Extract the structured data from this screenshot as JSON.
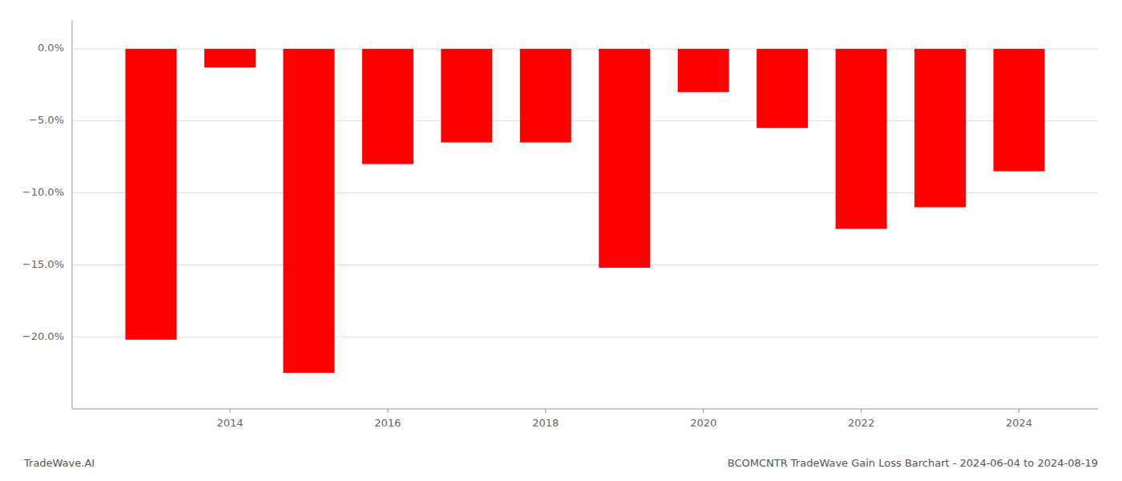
{
  "chart_data": {
    "type": "bar",
    "title": "BCOMCNTR TradeWave Gain Loss Barchart - 2024-06-04 to 2024-08-19",
    "annotations": [
      "TradeWave.AI"
    ],
    "x": [
      2013,
      2014,
      2015,
      2016,
      2017,
      2018,
      2019,
      2020,
      2021,
      2022,
      2023,
      2024
    ],
    "values": [
      -20.2,
      -1.3,
      -22.5,
      -8.0,
      -6.5,
      -6.5,
      -15.2,
      -3.0,
      -5.5,
      -12.5,
      -11.0,
      -8.5
    ],
    "color": "#ff0000",
    "xlim": [
      2012,
      2025
    ],
    "xticks": [
      2014,
      2016,
      2018,
      2020,
      2022,
      2024
    ],
    "ylim": [
      -25,
      2
    ],
    "yticks": [
      {
        "value": 0.0,
        "label": "0.0%"
      },
      {
        "value": -5.0,
        "label": "−5.0%"
      },
      {
        "value": -10.0,
        "label": "−10.0%"
      },
      {
        "value": -15.0,
        "label": "−15.0%"
      },
      {
        "value": -20.0,
        "label": "−20.0%"
      }
    ],
    "grid": true
  }
}
